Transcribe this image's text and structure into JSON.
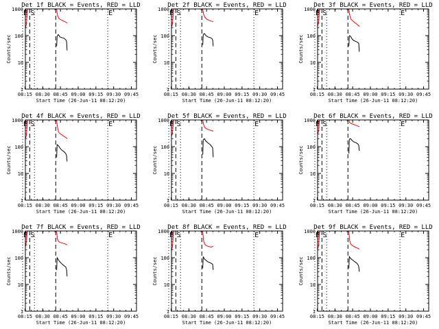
{
  "chart_data": {
    "type": "line",
    "layout": "3x3 grid",
    "scale": "log",
    "ylim": [
      1,
      1000
    ],
    "y_ticks": [
      "1",
      "10",
      "100",
      "1000"
    ],
    "x_ticks": [
      "08:15",
      "08:30",
      "08:45",
      "09:00",
      "09:15",
      "09:30",
      "09:45"
    ],
    "x_label": "Start Time (26-Jun-11 08:12:20)",
    "y_label": "Counts/sec",
    "series_colors": {
      "events": "#000000",
      "lld": "#ff0000"
    },
    "markers": [
      {
        "label": "E",
        "x": "08:13",
        "style": "dotted"
      },
      {
        "label": "S",
        "x": "08:19",
        "style": "dashed"
      },
      {
        "label": "",
        "x": "08:23",
        "style": "dotted"
      },
      {
        "label": "",
        "x": "08:41",
        "style": "dashed"
      },
      {
        "label": "E",
        "x": "09:25",
        "style": "dotted"
      }
    ],
    "panels": [
      {
        "title": "Det 1f BLACK = Events, RED = LLD",
        "lld": [
          [
            0,
            150
          ],
          [
            0.8,
            160
          ],
          [
            1.6,
            175
          ],
          [
            2.4,
            200
          ],
          [
            3.2,
            260
          ],
          [
            3.8,
            600
          ],
          [
            4.3,
            1000
          ],
          [
            28.8,
            1000
          ],
          [
            29.4,
            600
          ],
          [
            30.5,
            450
          ],
          [
            32,
            400
          ],
          [
            34,
            360
          ],
          [
            36,
            330
          ],
          [
            37.8,
            300
          ]
        ],
        "events": [
          [
            28.8,
            40
          ],
          [
            29.2,
            95
          ],
          [
            30.2,
            110
          ],
          [
            31.5,
            90
          ],
          [
            33,
            85
          ],
          [
            35,
            80
          ],
          [
            36.5,
            70
          ],
          [
            37.2,
            60
          ],
          [
            37.6,
            28
          ]
        ]
      },
      {
        "title": "Det 2f BLACK = Events, RED = LLD",
        "lld": [
          [
            0,
            180
          ],
          [
            0.8,
            185
          ],
          [
            1.6,
            190
          ],
          [
            2.4,
            210
          ],
          [
            3.2,
            270
          ],
          [
            3.8,
            650
          ],
          [
            4.3,
            1000
          ],
          [
            28.8,
            1000
          ],
          [
            29.4,
            650
          ],
          [
            30.5,
            500
          ],
          [
            32,
            420
          ],
          [
            34,
            380
          ],
          [
            36,
            350
          ],
          [
            37.8,
            330
          ]
        ],
        "events": [
          [
            28.8,
            45
          ],
          [
            29.2,
            110
          ],
          [
            30.2,
            120
          ],
          [
            31.5,
            100
          ],
          [
            33,
            90
          ],
          [
            35,
            85
          ],
          [
            36.5,
            78
          ],
          [
            37.2,
            68
          ],
          [
            37.6,
            40
          ]
        ]
      },
      {
        "title": "Det 3f BLACK = Events, RED = LLD",
        "lld": [
          [
            0,
            200
          ],
          [
            0.8,
            200
          ],
          [
            1.6,
            210
          ],
          [
            2.4,
            230
          ],
          [
            3.2,
            300
          ],
          [
            3.8,
            700
          ],
          [
            4.3,
            1000
          ],
          [
            28.8,
            1000
          ],
          [
            29.4,
            600
          ],
          [
            30.5,
            420
          ],
          [
            32,
            360
          ],
          [
            34,
            300
          ],
          [
            36,
            260
          ],
          [
            37.8,
            220
          ]
        ],
        "events": [
          [
            28.8,
            40
          ],
          [
            29.2,
            100
          ],
          [
            30.2,
            95
          ],
          [
            31.5,
            75
          ],
          [
            33,
            65
          ],
          [
            35,
            60
          ],
          [
            36.5,
            55
          ],
          [
            37.2,
            50
          ],
          [
            37.6,
            25
          ]
        ]
      },
      {
        "title": "Det 4f BLACK = Events, RED = LLD",
        "lld": [
          [
            0,
            160
          ],
          [
            0.8,
            165
          ],
          [
            1.6,
            175
          ],
          [
            2.4,
            200
          ],
          [
            3.2,
            260
          ],
          [
            3.8,
            600
          ],
          [
            4.3,
            1000
          ],
          [
            28.8,
            1000
          ],
          [
            29.4,
            550
          ],
          [
            30.5,
            350
          ],
          [
            32,
            300
          ],
          [
            34,
            260
          ],
          [
            36,
            230
          ],
          [
            37.8,
            200
          ]
        ],
        "events": [
          [
            28.8,
            40
          ],
          [
            29.2,
            120
          ],
          [
            30.2,
            110
          ],
          [
            31.5,
            90
          ],
          [
            33,
            75
          ],
          [
            35,
            65
          ],
          [
            36.5,
            55
          ],
          [
            37.2,
            45
          ],
          [
            37.6,
            28
          ]
        ]
      },
      {
        "title": "Det 5f BLACK = Events, RED = LLD",
        "lld": [
          [
            0,
            220
          ],
          [
            0.8,
            225
          ],
          [
            1.6,
            230
          ],
          [
            2.4,
            250
          ],
          [
            3.2,
            320
          ],
          [
            3.8,
            700
          ],
          [
            4.3,
            1000
          ],
          [
            28.8,
            1000
          ],
          [
            29.4,
            700
          ],
          [
            30.5,
            520
          ],
          [
            32,
            470
          ],
          [
            34,
            430
          ],
          [
            36,
            400
          ],
          [
            37.8,
            380
          ]
        ],
        "events": [
          [
            28.8,
            50
          ],
          [
            29.2,
            180
          ],
          [
            30.2,
            200
          ],
          [
            31.5,
            160
          ],
          [
            33,
            140
          ],
          [
            35,
            120
          ],
          [
            36.5,
            100
          ],
          [
            37.2,
            90
          ],
          [
            37.6,
            40
          ]
        ]
      },
      {
        "title": "Det 6f BLACK = Events, RED = LLD",
        "lld": [
          [
            0,
            260
          ],
          [
            0.8,
            265
          ],
          [
            1.6,
            280
          ],
          [
            2.4,
            300
          ],
          [
            3.2,
            380
          ],
          [
            3.8,
            800
          ],
          [
            4.3,
            1000
          ],
          [
            28.8,
            1000
          ],
          [
            29.4,
            800
          ],
          [
            30.5,
            750
          ],
          [
            32,
            700
          ],
          [
            34,
            650
          ],
          [
            36,
            600
          ],
          [
            37.8,
            560
          ]
        ],
        "events": [
          [
            28.8,
            55
          ],
          [
            29.2,
            190
          ],
          [
            30.2,
            200
          ],
          [
            31.5,
            170
          ],
          [
            33,
            150
          ],
          [
            35,
            140
          ],
          [
            36.5,
            125
          ],
          [
            37.2,
            110
          ],
          [
            37.6,
            70
          ]
        ]
      },
      {
        "title": "Det 7f BLACK = Events, RED = LLD",
        "lld": [
          [
            0,
            260
          ],
          [
            0.8,
            240
          ],
          [
            1.6,
            280
          ],
          [
            2.4,
            250
          ],
          [
            3.2,
            400
          ],
          [
            3.8,
            800
          ],
          [
            4.3,
            1000
          ],
          [
            28.8,
            1000
          ],
          [
            29.4,
            500
          ],
          [
            30.5,
            400
          ],
          [
            32,
            370
          ],
          [
            34,
            350
          ],
          [
            36,
            330
          ],
          [
            37.8,
            300
          ]
        ],
        "events": [
          [
            28.8,
            35
          ],
          [
            29.2,
            100
          ],
          [
            30.2,
            85
          ],
          [
            31.5,
            70
          ],
          [
            33,
            60
          ],
          [
            35,
            50
          ],
          [
            36.5,
            45
          ],
          [
            37.2,
            35
          ],
          [
            37.6,
            20
          ]
        ]
      },
      {
        "title": "Det 8f BLACK = Events, RED = LLD",
        "lld": [
          [
            0,
            170
          ],
          [
            0.8,
            160
          ],
          [
            1.6,
            175
          ],
          [
            2.4,
            190
          ],
          [
            3.2,
            260
          ],
          [
            3.8,
            650
          ],
          [
            4.3,
            1000
          ],
          [
            28.8,
            1000
          ],
          [
            29.4,
            450
          ],
          [
            30.5,
            320
          ],
          [
            32,
            280
          ],
          [
            34,
            260
          ],
          [
            36,
            250
          ],
          [
            37.8,
            270
          ]
        ],
        "events": [
          [
            28.8,
            40
          ],
          [
            29.2,
            110
          ],
          [
            30.2,
            90
          ],
          [
            31.5,
            80
          ],
          [
            33,
            70
          ],
          [
            35,
            65
          ],
          [
            36.5,
            60
          ],
          [
            37.2,
            55
          ],
          [
            37.6,
            35
          ]
        ]
      },
      {
        "title": "Det 9f BLACK = Events, RED = LLD",
        "lld": [
          [
            0,
            190
          ],
          [
            0.8,
            180
          ],
          [
            1.6,
            200
          ],
          [
            2.4,
            210
          ],
          [
            3.2,
            280
          ],
          [
            3.8,
            700
          ],
          [
            4.3,
            1000
          ],
          [
            28.8,
            1000
          ],
          [
            29.4,
            450
          ],
          [
            30.5,
            320
          ],
          [
            32,
            280
          ],
          [
            34,
            250
          ],
          [
            36,
            230
          ],
          [
            37.8,
            210
          ]
        ],
        "events": [
          [
            28.8,
            40
          ],
          [
            29.2,
            110
          ],
          [
            30.2,
            95
          ],
          [
            31.5,
            85
          ],
          [
            33,
            75
          ],
          [
            35,
            65
          ],
          [
            36.5,
            55
          ],
          [
            37.2,
            45
          ],
          [
            37.6,
            30
          ]
        ]
      }
    ]
  }
}
